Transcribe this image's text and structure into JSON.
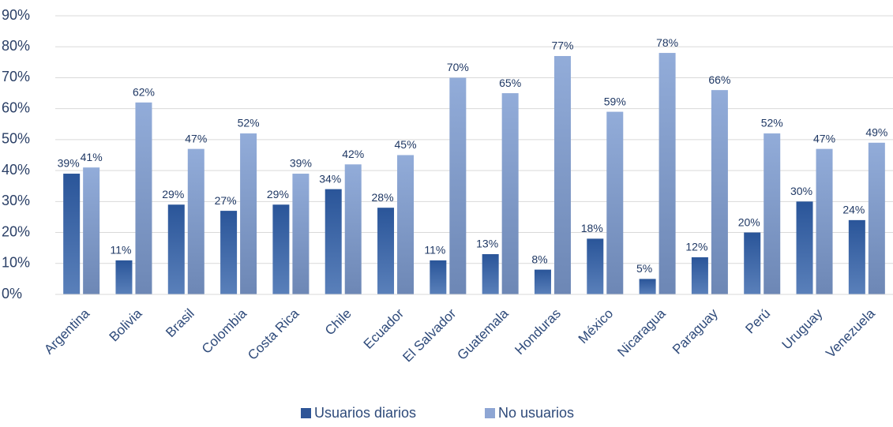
{
  "chart_data": {
    "type": "bar",
    "categories": [
      "Argentina",
      "Bolivia",
      "Brasil",
      "Colombia",
      "Costa Rica",
      "Chile",
      "Ecuador",
      "El Salvador",
      "Guatemala",
      "Honduras",
      "México",
      "Nicaragua",
      "Paraguay",
      "Perú",
      "Uruguay",
      "Venezuela"
    ],
    "series": [
      {
        "name": "Usuarios diarios",
        "color": "#2e5597",
        "values": [
          39,
          11,
          29,
          27,
          29,
          34,
          28,
          11,
          13,
          8,
          18,
          5,
          12,
          20,
          30,
          24
        ],
        "value_labels": [
          "39%",
          "11%",
          "29%",
          "27%",
          "29%",
          "34%",
          "28%",
          "11%",
          "13%",
          "8%",
          "18%",
          "5%",
          "12%",
          "20%",
          "30%",
          "24%"
        ]
      },
      {
        "name": "No usuarios",
        "color": "#8ea6d4",
        "values": [
          41,
          62,
          47,
          52,
          39,
          42,
          45,
          70,
          65,
          77,
          59,
          78,
          66,
          52,
          47,
          49
        ],
        "value_labels": [
          "41%",
          "62%",
          "47%",
          "52%",
          "39%",
          "42%",
          "45%",
          "70%",
          "65%",
          "77%",
          "59%",
          "78%",
          "66%",
          "52%",
          "47%",
          "49%"
        ]
      }
    ],
    "ylim": [
      0,
      90
    ],
    "yticks": [
      {
        "value": 0,
        "label": "0%"
      },
      {
        "value": 10,
        "label": "10%"
      },
      {
        "value": 20,
        "label": "20%"
      },
      {
        "value": 30,
        "label": "30%"
      },
      {
        "value": 40,
        "label": "40%"
      },
      {
        "value": 50,
        "label": "50%"
      },
      {
        "value": 60,
        "label": "60%"
      },
      {
        "value": 70,
        "label": "70%"
      },
      {
        "value": 80,
        "label": "80%"
      },
      {
        "value": 90,
        "label": "90%"
      }
    ],
    "grid": true,
    "legend": "bottom"
  }
}
